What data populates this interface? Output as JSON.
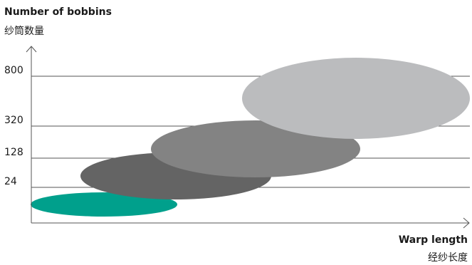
{
  "chart_data": {
    "type": "bubble",
    "title": "",
    "ylabel": "Number of bobbins",
    "ylabel_cn": "纱筒数量",
    "xlabel": "Warp length",
    "xlabel_cn": "经纱长度",
    "y_ticks": [
      "800",
      "320",
      "128",
      "24"
    ],
    "grid": true,
    "bubbles": [
      {
        "color": "#00a08c",
        "order": 1
      },
      {
        "color": "#646464",
        "order": 2
      },
      {
        "color": "#838383",
        "order": 3
      },
      {
        "color": "#bbbcbe",
        "order": 4
      }
    ]
  }
}
